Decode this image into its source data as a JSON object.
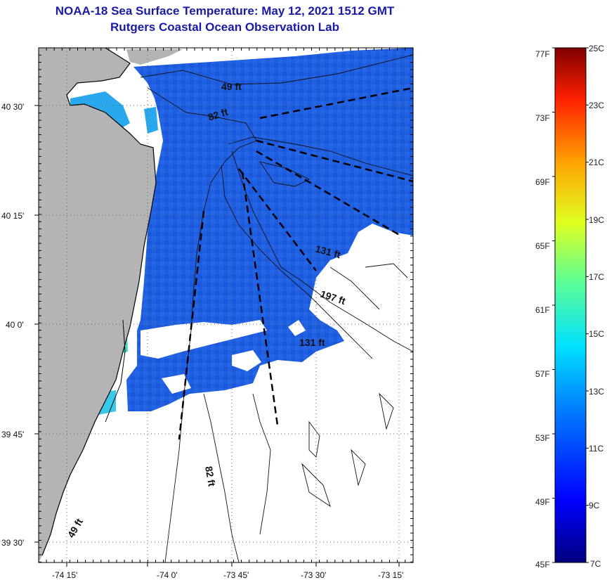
{
  "title": "NOAA-18 Sea Surface Temperature:  May 12, 2021 1512 GMT",
  "subtitle": "Rutgers Coastal Ocean Observation Lab",
  "map": {
    "lat_ticks": [
      "40 30'",
      "40 15'",
      "40 0'",
      "39 45'",
      "39 30'"
    ],
    "lon_ticks": [
      "-74 15'",
      "-74 0'",
      "-73 45'",
      "-73 30'",
      "-73 15'"
    ],
    "depth_labels": [
      "49 ft",
      "82 ft",
      "131 ft",
      "197 ft",
      "131 ft",
      "82 ft",
      "49 ft"
    ],
    "colors": {
      "land": "#b4b4b4",
      "sst_main": "#1f5fe0",
      "sst_deep": "#1448cc",
      "sst_near": "#2aa8ee",
      "no_data": "#ffffff"
    }
  },
  "colorbar": {
    "fahrenheit_labels": [
      "77F",
      "73F",
      "69F",
      "65F",
      "61F",
      "57F",
      "53F",
      "49F",
      "45F"
    ],
    "celsius_labels": [
      "25C",
      "23C",
      "21C",
      "19C",
      "17C",
      "15C",
      "13C",
      "11C",
      "9C",
      "7C"
    ],
    "range_c": [
      7,
      25
    ],
    "range_f": [
      45,
      77
    ]
  }
}
